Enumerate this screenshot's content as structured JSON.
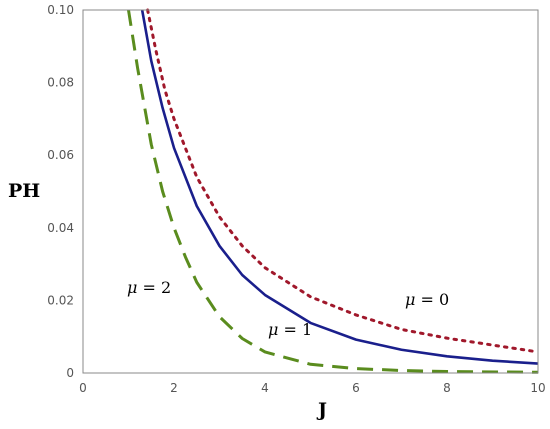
{
  "chart_data": {
    "type": "line",
    "title": "",
    "xlabel": "J",
    "ylabel": "PH",
    "xlim": [
      0,
      10
    ],
    "ylim": [
      0,
      0.1
    ],
    "grid": false,
    "x_ticks": [
      "0",
      "2",
      "4",
      "6",
      "8",
      "10"
    ],
    "y_ticks": [
      "0",
      "0.02",
      "0.04",
      "0.06",
      "0.08",
      "0.10"
    ],
    "series": [
      {
        "label": "μ = 0",
        "label_symbol": "μ",
        "label_rest": " = 0",
        "style": "dotted",
        "color": "#a0182b",
        "x": [
          1.42,
          1.6,
          1.8,
          2.0,
          2.5,
          3.0,
          3.5,
          4.0,
          5.0,
          6.0,
          7.0,
          8.0,
          9.0,
          10.0
        ],
        "y": [
          0.1,
          0.089,
          0.078,
          0.07,
          0.054,
          0.043,
          0.035,
          0.029,
          0.021,
          0.016,
          0.012,
          0.0096,
          0.0077,
          0.0058
        ]
      },
      {
        "label": "μ = 1",
        "label_symbol": "μ",
        "label_rest": " = 1",
        "style": "solid",
        "color": "#1a1f8c",
        "x": [
          1.3,
          1.5,
          1.75,
          2.0,
          2.5,
          3.0,
          3.5,
          4.0,
          5.0,
          6.0,
          7.0,
          8.0,
          9.0,
          10.0
        ],
        "y": [
          0.1,
          0.086,
          0.073,
          0.062,
          0.046,
          0.035,
          0.027,
          0.0215,
          0.0138,
          0.0092,
          0.0064,
          0.0046,
          0.0034,
          0.0026
        ]
      },
      {
        "label": "μ = 2",
        "label_symbol": "μ",
        "label_rest": " = 2",
        "style": "dashed",
        "color": "#5a8c1e",
        "x": [
          1.0,
          1.2,
          1.5,
          1.75,
          2.0,
          2.25,
          2.5,
          3.0,
          3.5,
          4.0,
          5.0,
          6.0,
          7.0,
          8.0,
          10.0
        ],
        "y": [
          0.1,
          0.084,
          0.063,
          0.05,
          0.04,
          0.032,
          0.025,
          0.0155,
          0.0095,
          0.0058,
          0.0024,
          0.0012,
          0.0007,
          0.0004,
          0.0002
        ]
      }
    ]
  }
}
